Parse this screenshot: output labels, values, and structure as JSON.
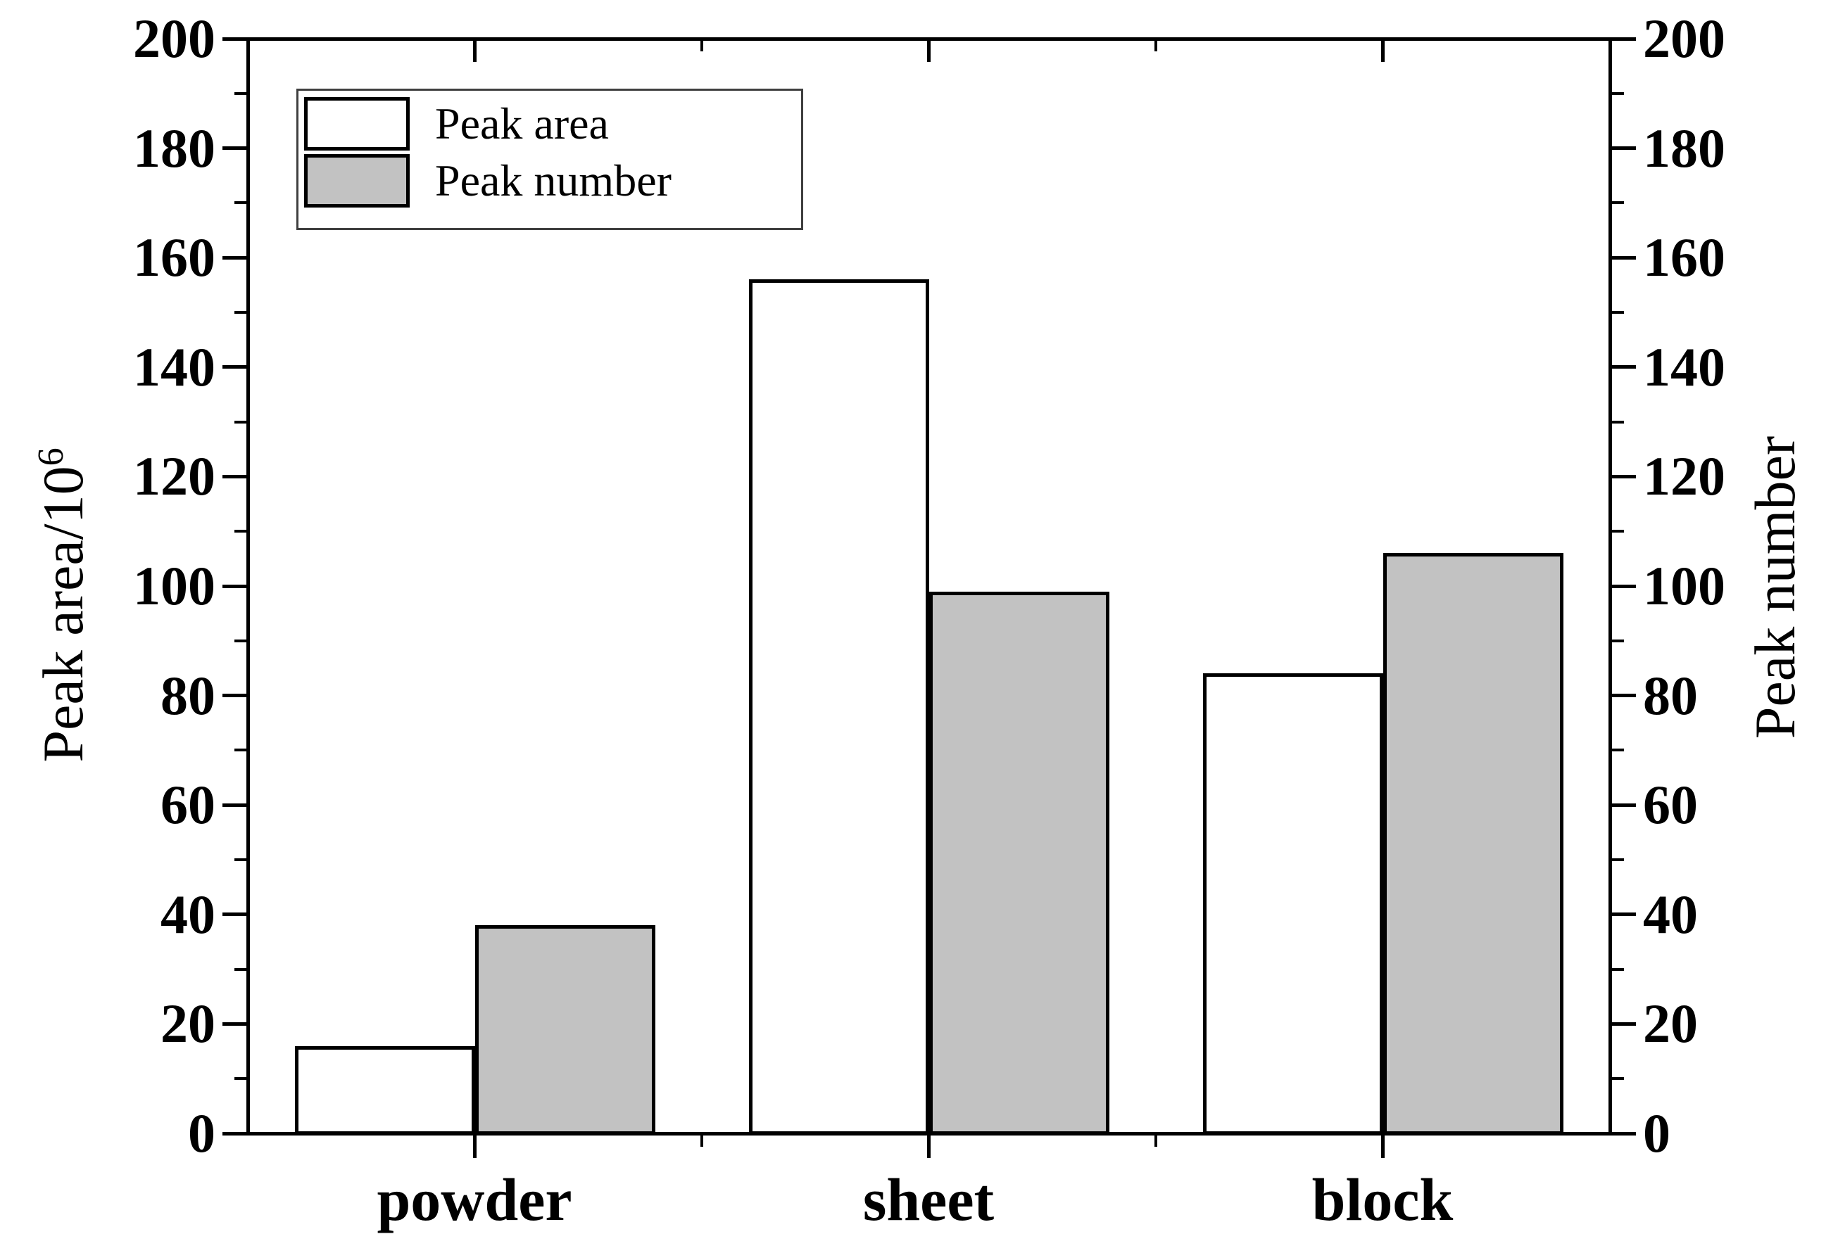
{
  "figure": {
    "background": "#ffffff",
    "axis_color": "#000000",
    "bar_outline_color": "#000000"
  },
  "chart_data": {
    "type": "bar",
    "categories": [
      "powder",
      "sheet",
      "block"
    ],
    "series": [
      {
        "name": "Peak area",
        "fill": "#ffffff",
        "values": [
          16,
          156,
          84
        ]
      },
      {
        "name": "Peak number",
        "fill": "#c2c2c2",
        "values": [
          38,
          99,
          106
        ]
      }
    ],
    "left_axis": {
      "title_base": "Peak area/10",
      "title_sup": "6",
      "min": 0,
      "max": 200,
      "major_step": 20,
      "minor_step": 10,
      "tick_labels": [
        "0",
        "20",
        "40",
        "60",
        "80",
        "100",
        "120",
        "140",
        "160",
        "180",
        "200"
      ]
    },
    "right_axis": {
      "title": "Peak number",
      "min": 0,
      "max": 200,
      "major_step": 20,
      "minor_step": 10,
      "tick_labels": [
        "0",
        "20",
        "40",
        "60",
        "80",
        "100",
        "120",
        "140",
        "160",
        "180",
        "200"
      ]
    },
    "legend": {
      "position": "top-left",
      "entries": [
        "Peak area",
        "Peak number"
      ]
    },
    "grid": false
  }
}
